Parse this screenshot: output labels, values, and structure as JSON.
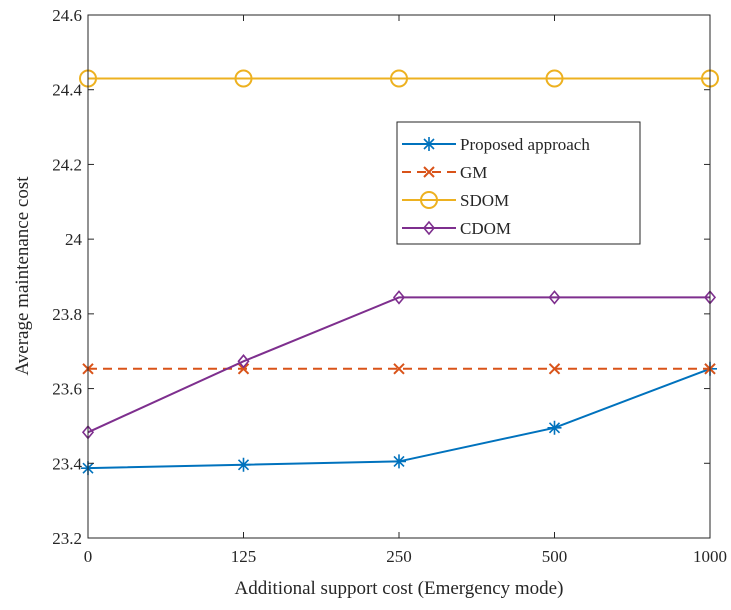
{
  "chart_data": {
    "type": "line",
    "title": "",
    "xlabel": "Additional support cost (Emergency mode)",
    "ylabel": "Average maintenance cost",
    "categories": [
      "0",
      "125",
      "250",
      "500",
      "1000"
    ],
    "ylim": [
      23.2,
      24.6
    ],
    "yticks": [
      "23.2",
      "23.4",
      "23.6",
      "23.8",
      "24",
      "24.2",
      "24.4",
      "24.6"
    ],
    "grid": false,
    "legend_position": "upper-right",
    "series": [
      {
        "name": "Proposed approach",
        "marker": "asterisk",
        "line_style": "solid",
        "color": "#0072BD",
        "values": [
          23.387,
          23.396,
          23.405,
          23.495,
          23.653
        ]
      },
      {
        "name": "GM",
        "marker": "x",
        "line_style": "dashed",
        "color": "#D95319",
        "values": [
          23.653,
          23.653,
          23.653,
          23.653,
          23.653
        ]
      },
      {
        "name": "SDOM",
        "marker": "circle",
        "line_style": "solid",
        "color": "#EDB120",
        "values": [
          24.43,
          24.43,
          24.43,
          24.43,
          24.43
        ]
      },
      {
        "name": "CDOM",
        "marker": "diamond",
        "line_style": "solid",
        "color": "#7E2F8E",
        "values": [
          23.483,
          23.673,
          23.844,
          23.844,
          23.844
        ]
      }
    ]
  }
}
